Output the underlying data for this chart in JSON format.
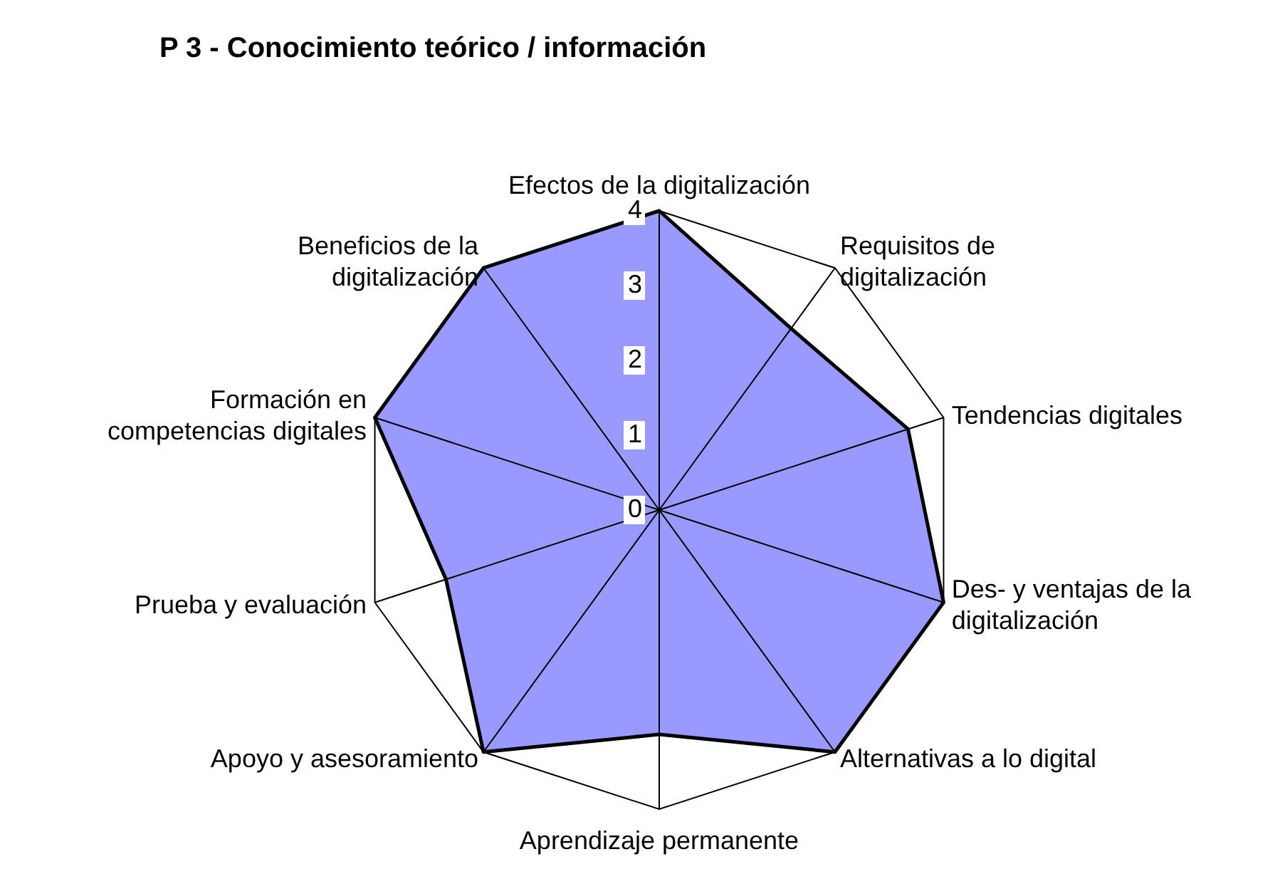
{
  "chart_data": {
    "type": "radar",
    "title": "P 3 - Conocimiento teórico / información",
    "categories": [
      "Efectos de la digitalización",
      "Requisitos de\ndigitalización",
      "Tendencias digitales",
      "Des- y ventajas de la\ndigitalización",
      "Alternativas a lo digital",
      "Aprendizaje permanente",
      "Apoyo y asesoramiento",
      "Prueba y evaluación",
      "Formación en\ncompetencias digitales",
      "Beneficios de la\ndigitalización"
    ],
    "series": [
      {
        "color": "#9999ff",
        "values": [
          4,
          3,
          3.5,
          4,
          4,
          3,
          4,
          3,
          4,
          4
        ]
      }
    ],
    "ylim": [
      0,
      4
    ],
    "yticks": [
      0,
      1,
      2,
      3,
      4
    ]
  }
}
